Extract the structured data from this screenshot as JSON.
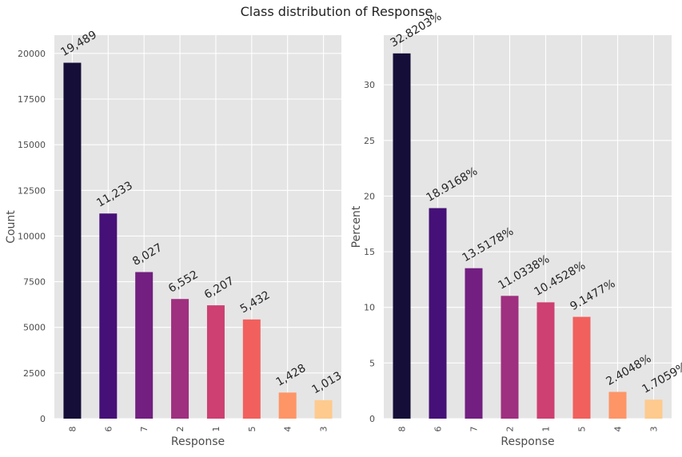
{
  "figure": {
    "title": "Class distribution of Response"
  },
  "chart_data": [
    {
      "type": "bar",
      "title": "",
      "xlabel": "Response",
      "ylabel": "Count",
      "categories": [
        "8",
        "6",
        "7",
        "2",
        "1",
        "5",
        "4",
        "3"
      ],
      "values": [
        19489,
        11233,
        8027,
        6552,
        6207,
        5432,
        1428,
        1013
      ],
      "data_labels": [
        "19,489",
        "11,233",
        "8,027",
        "6,552",
        "6,207",
        "5,432",
        "1,428",
        "1,013"
      ],
      "ylim": [
        0,
        21000
      ],
      "yticks": [
        0,
        2500,
        5000,
        7500,
        10000,
        12500,
        15000,
        17500,
        20000
      ],
      "grid": true,
      "colors": [
        "#150e38",
        "#451077",
        "#721f81",
        "#9f2f7f",
        "#cd4071",
        "#f1605d",
        "#fd9567",
        "#feca8d"
      ]
    },
    {
      "type": "bar",
      "title": "",
      "xlabel": "Response",
      "ylabel": "Percent",
      "categories": [
        "8",
        "6",
        "7",
        "2",
        "1",
        "5",
        "4",
        "3"
      ],
      "values": [
        32.8203,
        18.9168,
        13.5178,
        11.0338,
        10.4528,
        9.1477,
        2.4048,
        1.7059
      ],
      "data_labels": [
        "32.8203%",
        "18.9168%",
        "13.5178%",
        "11.0338%",
        "10.4528%",
        "9.1477%",
        "2.4048%",
        "1.7059%"
      ],
      "ylim": [
        0,
        34.46
      ],
      "yticks": [
        0,
        5,
        10,
        15,
        20,
        25,
        30
      ],
      "grid": true,
      "colors": [
        "#150e38",
        "#451077",
        "#721f81",
        "#9f2f7f",
        "#cd4071",
        "#f1605d",
        "#fd9567",
        "#feca8d"
      ]
    }
  ]
}
